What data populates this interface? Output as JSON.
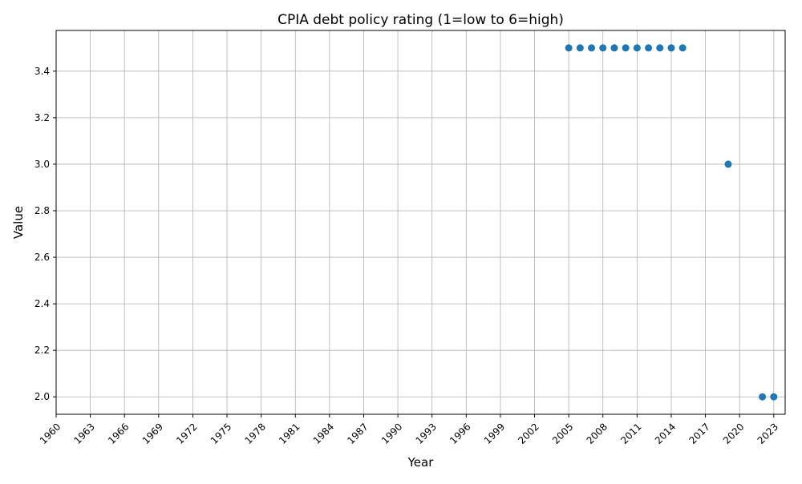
{
  "chart_data": {
    "type": "scatter",
    "title": "CPIA debt policy rating (1=low to 6=high)",
    "xlabel": "Year",
    "ylabel": "Value",
    "xlim": [
      1960,
      2024
    ],
    "ylim": [
      1.925,
      3.575
    ],
    "x_ticks": [
      1960,
      1963,
      1966,
      1969,
      1972,
      1975,
      1978,
      1981,
      1984,
      1987,
      1990,
      1993,
      1996,
      1999,
      2002,
      2005,
      2008,
      2011,
      2014,
      2017,
      2020,
      2023
    ],
    "y_ticks": [
      "2.0",
      "2.2",
      "2.4",
      "2.6",
      "2.8",
      "3.0",
      "3.2",
      "3.4"
    ],
    "grid": true,
    "marker_color": "#1f77b4",
    "series": [
      {
        "x": [
          2005,
          2006,
          2007,
          2008,
          2009,
          2010,
          2011,
          2012,
          2013,
          2014,
          2015,
          2019,
          2022,
          2023
        ],
        "values": [
          3.5,
          3.5,
          3.5,
          3.5,
          3.5,
          3.5,
          3.5,
          3.5,
          3.5,
          3.5,
          3.5,
          3.0,
          2.0,
          2.0
        ]
      }
    ]
  }
}
